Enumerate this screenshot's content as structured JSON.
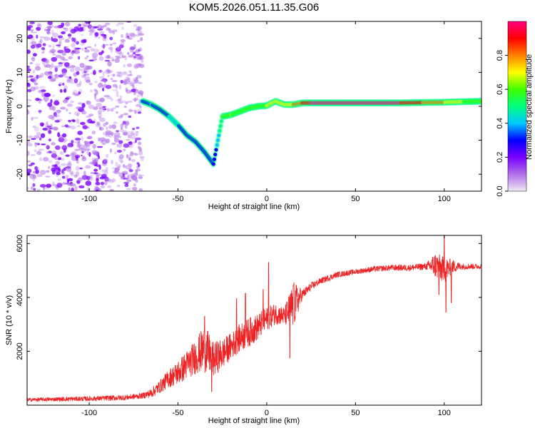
{
  "title": "KOM5.2026.051.11.35.G06",
  "chart_data": [
    {
      "type": "heatmap",
      "xlabel": "Height of straight line (km)",
      "ylabel": "Frequency (Hz)",
      "xlim": [
        -135,
        121
      ],
      "ylim": [
        -25,
        25
      ],
      "xticks": [
        -100,
        -50,
        0,
        50,
        100
      ],
      "yticks": [
        -20,
        -10,
        0,
        10,
        20
      ],
      "colorbar": {
        "label": "Normalized spectral amplitude",
        "range": [
          0.0,
          1.0
        ],
        "ticks": [
          0.0,
          0.2,
          0.4,
          0.6,
          0.8
        ],
        "colormap": [
          "#f0e8f8",
          "#b070e8",
          "#7b00ff",
          "#0000ff",
          "#00c8ff",
          "#00ff80",
          "#40ff00",
          "#ffff00",
          "#ff8000",
          "#ff0000",
          "#ff0080"
        ]
      },
      "ridge": {
        "x": [
          -70,
          -65,
          -60,
          -55,
          -50,
          -45,
          -40,
          -35,
          -30,
          -25,
          -20,
          -15,
          -10,
          -5,
          0,
          5,
          10,
          15,
          20,
          25,
          50,
          75,
          100,
          121
        ],
        "freq": [
          1.5,
          0.5,
          -1.0,
          -3.0,
          -5.5,
          -8.5,
          -10.5,
          -13.5,
          -17.0,
          -3.0,
          -2.5,
          -1.5,
          -0.5,
          0.0,
          0.2,
          1.5,
          0.5,
          0.5,
          1.0,
          1.0,
          1.0,
          1.0,
          1.2,
          1.5
        ],
        "amplitude": [
          0.3,
          0.35,
          0.3,
          0.35,
          0.35,
          0.3,
          0.3,
          0.3,
          0.25,
          0.55,
          0.65,
          0.6,
          0.55,
          0.6,
          0.65,
          0.65,
          0.7,
          0.75,
          0.85,
          0.95,
          1.0,
          0.95,
          0.75,
          0.55
        ]
      },
      "scatter_region": {
        "x": [
          -135,
          -70
        ],
        "freq": [
          -25,
          25
        ],
        "amplitude_max": 0.2
      }
    },
    {
      "type": "line",
      "xlabel": "Height of straight line (km)",
      "ylabel": "SNR (10 * v/v)",
      "xlim": [
        -135,
        121
      ],
      "ylim": [
        0,
        6300
      ],
      "xticks": [
        -100,
        -50,
        0,
        50,
        100
      ],
      "yticks": [
        2000,
        4000,
        6000
      ],
      "color": "#ee2222",
      "series": [
        {
          "name": "SNR",
          "x": [
            -135,
            -120,
            -100,
            -80,
            -70,
            -65,
            -60,
            -55,
            -50,
            -45,
            -40,
            -35,
            -30,
            -25,
            -20,
            -15,
            -10,
            -5,
            0,
            5,
            10,
            15,
            20,
            25,
            30,
            40,
            50,
            60,
            70,
            80,
            90,
            95,
            100,
            105,
            110,
            115,
            121
          ],
          "y": [
            200,
            220,
            240,
            280,
            350,
            450,
            700,
            1000,
            1200,
            1500,
            1800,
            2100,
            1700,
            1900,
            2200,
            2500,
            2700,
            2900,
            3200,
            3400,
            3300,
            3700,
            4100,
            4400,
            4600,
            4850,
            4950,
            5050,
            5100,
            5100,
            5150,
            5200,
            5000,
            5150,
            5150,
            5150,
            5150
          ]
        }
      ],
      "variability": {
        "x": [
          -135,
          -70,
          -60,
          -50,
          -40,
          -35,
          -30,
          -20,
          -10,
          0,
          10,
          15,
          20,
          30,
          50,
          90,
          95,
          100,
          105,
          110,
          121
        ],
        "amp": [
          70,
          110,
          250,
          450,
          650,
          900,
          650,
          500,
          550,
          450,
          350,
          900,
          200,
          120,
          100,
          130,
          500,
          500,
          250,
          120,
          100
        ]
      },
      "spikes": [
        {
          "x": -35,
          "y": 3300
        },
        {
          "x": -31,
          "y": 500
        },
        {
          "x": -17,
          "y": 3950
        },
        {
          "x": -12,
          "y": 4150
        },
        {
          "x": -2,
          "y": 4300
        },
        {
          "x": 1,
          "y": 5300
        },
        {
          "x": 13,
          "y": 1750
        },
        {
          "x": 15,
          "y": 4450
        },
        {
          "x": 100,
          "y": 6300
        },
        {
          "x": 101,
          "y": 3450
        },
        {
          "x": 97,
          "y": 4100
        },
        {
          "x": 104,
          "y": 3800
        }
      ]
    }
  ]
}
